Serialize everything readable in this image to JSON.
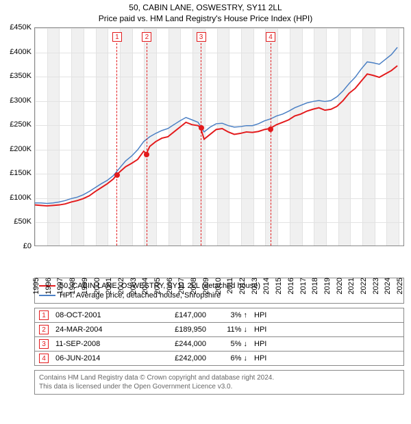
{
  "title": "50, CABIN LANE, OSWESTRY, SY11 2LL",
  "subtitle": "Price paid vs. HM Land Registry's House Price Index (HPI)",
  "chart": {
    "type": "line",
    "background_color": "#ffffff",
    "grid_color": "#e2e2e2",
    "border_color": "#888888",
    "yearband_color": "#f0f0f0",
    "x_min": 1995,
    "x_max": 2025.5,
    "x_tick_step": 1,
    "x_tick_labels": [
      "1995",
      "1996",
      "1997",
      "1998",
      "1999",
      "2000",
      "2001",
      "2002",
      "2003",
      "2004",
      "2005",
      "2006",
      "2007",
      "2008",
      "2009",
      "2010",
      "2011",
      "2012",
      "2013",
      "2014",
      "2015",
      "2016",
      "2017",
      "2018",
      "2019",
      "2020",
      "2021",
      "2022",
      "2023",
      "2024",
      "2025"
    ],
    "y_min": 0,
    "y_max": 450000,
    "y_tick_step": 50000,
    "y_tick_labels": [
      "£0",
      "£50K",
      "£100K",
      "£150K",
      "£200K",
      "£250K",
      "£300K",
      "£350K",
      "£400K",
      "£450K"
    ],
    "axis_fontsize": 11,
    "series": [
      {
        "name": "50, CABIN LANE, OSWESTRY, SY11 2LL (detached house)",
        "color": "#e31a1c",
        "line_width": 2,
        "points": [
          [
            1995.0,
            84000
          ],
          [
            1995.5,
            83000
          ],
          [
            1996.0,
            82000
          ],
          [
            1996.5,
            83000
          ],
          [
            1997.0,
            84000
          ],
          [
            1997.5,
            86000
          ],
          [
            1998.0,
            90000
          ],
          [
            1998.5,
            93000
          ],
          [
            1999.0,
            97000
          ],
          [
            1999.5,
            103000
          ],
          [
            2000.0,
            112000
          ],
          [
            2000.5,
            120000
          ],
          [
            2001.0,
            128000
          ],
          [
            2001.5,
            138000
          ],
          [
            2001.77,
            147000
          ],
          [
            2002.0,
            152000
          ],
          [
            2002.5,
            163000
          ],
          [
            2003.0,
            170000
          ],
          [
            2003.5,
            178000
          ],
          [
            2004.0,
            195000
          ],
          [
            2004.23,
            189950
          ],
          [
            2004.5,
            205000
          ],
          [
            2005.0,
            215000
          ],
          [
            2005.5,
            222000
          ],
          [
            2006.0,
            225000
          ],
          [
            2006.5,
            235000
          ],
          [
            2007.0,
            245000
          ],
          [
            2007.5,
            255000
          ],
          [
            2008.0,
            250000
          ],
          [
            2008.5,
            248000
          ],
          [
            2008.7,
            244000
          ],
          [
            2009.0,
            220000
          ],
          [
            2009.5,
            230000
          ],
          [
            2010.0,
            240000
          ],
          [
            2010.5,
            242000
          ],
          [
            2011.0,
            235000
          ],
          [
            2011.5,
            230000
          ],
          [
            2012.0,
            232000
          ],
          [
            2012.5,
            235000
          ],
          [
            2013.0,
            234000
          ],
          [
            2013.5,
            236000
          ],
          [
            2014.0,
            240000
          ],
          [
            2014.43,
            242000
          ],
          [
            2015.0,
            250000
          ],
          [
            2015.5,
            255000
          ],
          [
            2016.0,
            260000
          ],
          [
            2016.5,
            268000
          ],
          [
            2017.0,
            272000
          ],
          [
            2017.5,
            278000
          ],
          [
            2018.0,
            282000
          ],
          [
            2018.5,
            285000
          ],
          [
            2019.0,
            280000
          ],
          [
            2019.5,
            282000
          ],
          [
            2020.0,
            288000
          ],
          [
            2020.5,
            300000
          ],
          [
            2021.0,
            315000
          ],
          [
            2021.5,
            325000
          ],
          [
            2022.0,
            340000
          ],
          [
            2022.5,
            355000
          ],
          [
            2023.0,
            352000
          ],
          [
            2023.5,
            348000
          ],
          [
            2024.0,
            355000
          ],
          [
            2024.5,
            362000
          ],
          [
            2025.0,
            372000
          ]
        ]
      },
      {
        "name": "HPI: Average price, detached house, Shropshire",
        "color": "#4a7fc4",
        "line_width": 1.5,
        "points": [
          [
            1995.0,
            88000
          ],
          [
            1995.5,
            88000
          ],
          [
            1996.0,
            87000
          ],
          [
            1996.5,
            88000
          ],
          [
            1997.0,
            90000
          ],
          [
            1997.5,
            93000
          ],
          [
            1998.0,
            97000
          ],
          [
            1998.5,
            100000
          ],
          [
            1999.0,
            105000
          ],
          [
            1999.5,
            112000
          ],
          [
            2000.0,
            120000
          ],
          [
            2000.5,
            128000
          ],
          [
            2001.0,
            135000
          ],
          [
            2001.5,
            145000
          ],
          [
            2002.0,
            160000
          ],
          [
            2002.5,
            175000
          ],
          [
            2003.0,
            185000
          ],
          [
            2003.5,
            198000
          ],
          [
            2004.0,
            215000
          ],
          [
            2004.5,
            225000
          ],
          [
            2005.0,
            232000
          ],
          [
            2005.5,
            238000
          ],
          [
            2006.0,
            242000
          ],
          [
            2006.5,
            250000
          ],
          [
            2007.0,
            258000
          ],
          [
            2007.5,
            265000
          ],
          [
            2008.0,
            260000
          ],
          [
            2008.5,
            255000
          ],
          [
            2009.0,
            235000
          ],
          [
            2009.5,
            245000
          ],
          [
            2010.0,
            252000
          ],
          [
            2010.5,
            253000
          ],
          [
            2011.0,
            248000
          ],
          [
            2011.5,
            245000
          ],
          [
            2012.0,
            246000
          ],
          [
            2012.5,
            248000
          ],
          [
            2013.0,
            248000
          ],
          [
            2013.5,
            252000
          ],
          [
            2014.0,
            258000
          ],
          [
            2014.5,
            262000
          ],
          [
            2015.0,
            268000
          ],
          [
            2015.5,
            272000
          ],
          [
            2016.0,
            278000
          ],
          [
            2016.5,
            285000
          ],
          [
            2017.0,
            290000
          ],
          [
            2017.5,
            295000
          ],
          [
            2018.0,
            298000
          ],
          [
            2018.5,
            300000
          ],
          [
            2019.0,
            298000
          ],
          [
            2019.5,
            300000
          ],
          [
            2020.0,
            308000
          ],
          [
            2020.5,
            320000
          ],
          [
            2021.0,
            335000
          ],
          [
            2021.5,
            348000
          ],
          [
            2022.0,
            365000
          ],
          [
            2022.5,
            380000
          ],
          [
            2023.0,
            378000
          ],
          [
            2023.5,
            375000
          ],
          [
            2024.0,
            385000
          ],
          [
            2024.5,
            395000
          ],
          [
            2025.0,
            410000
          ]
        ]
      }
    ],
    "sale_markers": {
      "color": "#e31a1c",
      "box_top_y": 6,
      "points": [
        {
          "n": "1",
          "x": 2001.77,
          "y": 147000
        },
        {
          "n": "2",
          "x": 2004.23,
          "y": 189950
        },
        {
          "n": "3",
          "x": 2008.7,
          "y": 244000
        },
        {
          "n": "4",
          "x": 2014.43,
          "y": 242000
        }
      ]
    }
  },
  "legend": [
    {
      "color": "#e31a1c",
      "width": 2,
      "label": "50, CABIN LANE, OSWESTRY, SY11 2LL (detached house)"
    },
    {
      "color": "#4a7fc4",
      "width": 1.5,
      "label": "HPI: Average price, detached house, Shropshire"
    }
  ],
  "sales": [
    {
      "n": "1",
      "date": "08-OCT-2001",
      "price": "£147,000",
      "diff": "3%",
      "arrow": "↑",
      "hpi": "HPI"
    },
    {
      "n": "2",
      "date": "24-MAR-2004",
      "price": "£189,950",
      "diff": "11%",
      "arrow": "↓",
      "hpi": "HPI"
    },
    {
      "n": "3",
      "date": "11-SEP-2008",
      "price": "£244,000",
      "diff": "5%",
      "arrow": "↓",
      "hpi": "HPI"
    },
    {
      "n": "4",
      "date": "06-JUN-2014",
      "price": "£242,000",
      "diff": "6%",
      "arrow": "↓",
      "hpi": "HPI"
    }
  ],
  "sales_box_color": "#e31a1c",
  "footer_line1": "Contains HM Land Registry data © Crown copyright and database right 2024.",
  "footer_line2": "This data is licensed under the Open Government Licence v3.0."
}
